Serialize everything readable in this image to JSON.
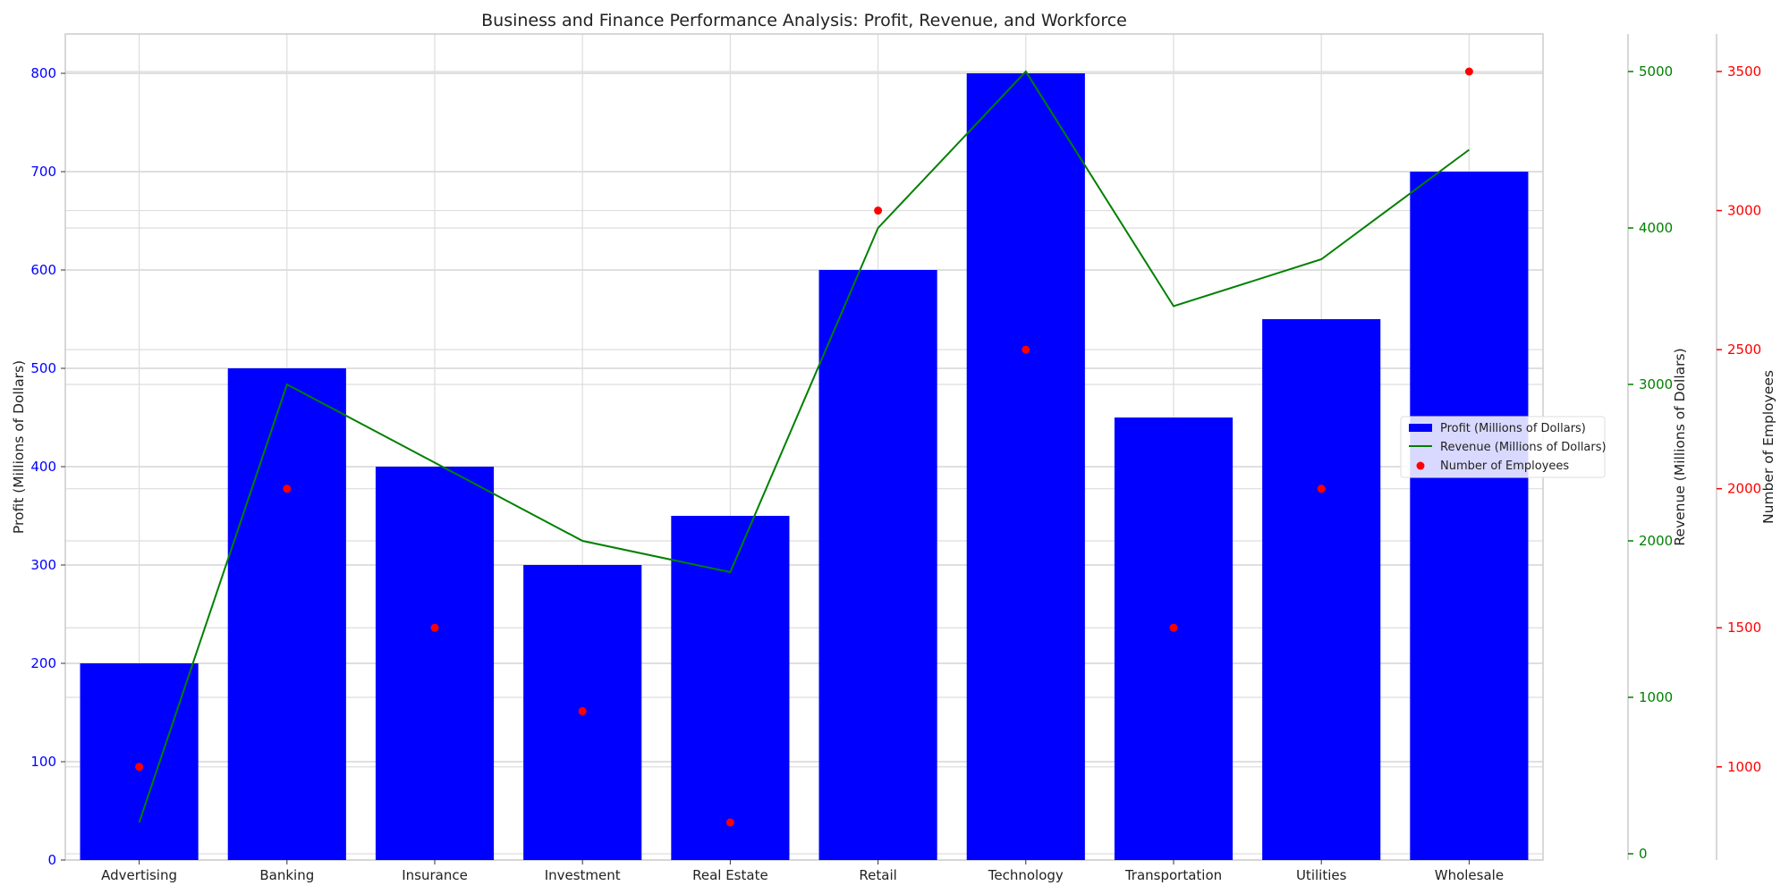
{
  "chart_data": {
    "type": "bar",
    "title": "Business and Finance Performance Analysis: Profit, Revenue, and Workforce",
    "categories": [
      "Advertising",
      "Banking",
      "Insurance",
      "Investment",
      "Real Estate",
      "Retail",
      "Technology",
      "Transportation",
      "Utilities",
      "Wholesale"
    ],
    "series": [
      {
        "name": "Profit (Millions of Dollars)",
        "type": "bar",
        "axis": "left",
        "color": "#0000ff",
        "values": [
          200,
          500,
          400,
          300,
          350,
          600,
          800,
          450,
          550,
          700
        ]
      },
      {
        "name": "Revenue (Millions of Dollars)",
        "type": "line",
        "axis": "right1",
        "color": "#008000",
        "values": [
          200,
          3000,
          2500,
          2000,
          1800,
          4000,
          5000,
          3500,
          3800,
          4500
        ]
      },
      {
        "name": "Number of Employees",
        "type": "scatter",
        "axis": "right2",
        "color": "#ff0000",
        "values": [
          1000,
          2000,
          1500,
          1200,
          800,
          3000,
          2500,
          1500,
          2000,
          3500
        ]
      }
    ],
    "axes": {
      "left": {
        "label": "Profit (Millions of Dollars)",
        "ylim": [
          0,
          840
        ],
        "ticks": [
          0,
          100,
          200,
          300,
          400,
          500,
          600,
          700,
          800
        ],
        "color": "#0000ff"
      },
      "right1": {
        "label": "Revenue (Millions of Dollars)",
        "ylim": [
          -40,
          5240
        ],
        "ticks": [
          0,
          1000,
          2000,
          3000,
          4000,
          5000
        ],
        "color": "#008000"
      },
      "right2": {
        "label": "Number of Employees",
        "ylim": [
          665,
          3635
        ],
        "ticks": [
          1000,
          1500,
          2000,
          2500,
          3000,
          3500
        ],
        "color": "#ff0000"
      }
    },
    "grid": true,
    "legend": "center-right"
  }
}
